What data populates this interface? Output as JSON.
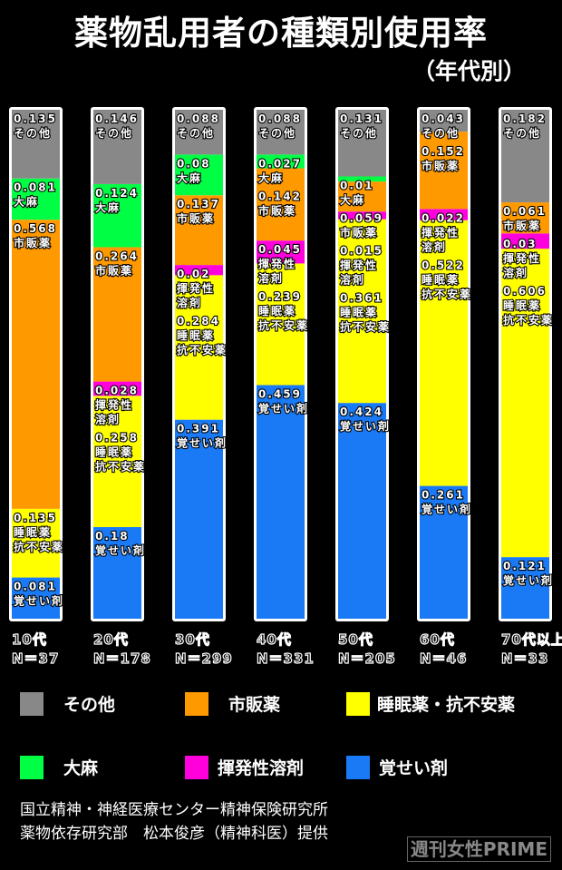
{
  "chart_data": {
    "type": "bar",
    "stacked": true,
    "title": "薬物乱用者の種類別使用率",
    "subtitle": "（年代別）",
    "categories": [
      "10代",
      "20代",
      "30代",
      "40代",
      "50代",
      "60代",
      "70代以上"
    ],
    "sample_sizes": [
      "N＝37",
      "N＝178",
      "N＝299",
      "N＝331",
      "N＝205",
      "N＝46",
      "N＝33"
    ],
    "ylim": [
      0,
      1
    ],
    "grid": false,
    "legend_position": "bottom",
    "series": [
      {
        "name": "覚せい剤",
        "label_lines": [
          "覚せい剤"
        ],
        "color": "#1a7af5",
        "values": [
          0.081,
          0.18,
          0.391,
          0.459,
          0.424,
          0.261,
          0.121
        ]
      },
      {
        "name": "睡眠薬・抗不安薬",
        "label_lines": [
          "睡眠薬",
          "抗不安薬"
        ],
        "color": "#ffff00",
        "values": [
          0.135,
          0.258,
          0.284,
          0.239,
          0.361,
          0.522,
          0.606
        ]
      },
      {
        "name": "揮発性溶剤",
        "label_lines": [
          "揮発性",
          "溶剤"
        ],
        "color": "#ff00dd",
        "values": [
          0,
          0.028,
          0.02,
          0.045,
          0.015,
          0.022,
          0.03
        ]
      },
      {
        "name": "市販薬",
        "label_lines": [
          "市販薬"
        ],
        "color": "#ff9900",
        "values": [
          0.568,
          0.264,
          0.137,
          0.142,
          0.059,
          0.152,
          0.061
        ]
      },
      {
        "name": "大麻",
        "label_lines": [
          "大麻"
        ],
        "color": "#00ff44",
        "values": [
          0.081,
          0.124,
          0.08,
          0.027,
          0.01,
          0,
          0
        ]
      },
      {
        "name": "その他",
        "label_lines": [
          "その他"
        ],
        "color": "#888888",
        "values": [
          0.135,
          0.146,
          0.088,
          0.088,
          0.131,
          0.043,
          0.182
        ]
      }
    ]
  },
  "legend": [
    {
      "label": "その他",
      "color": "#888888"
    },
    {
      "label": "市販薬",
      "color": "#ff9900"
    },
    {
      "label": "睡眠薬・抗不安薬",
      "color": "#ffff00"
    },
    {
      "label": "大麻",
      "color": "#00ff44"
    },
    {
      "label": "揮発性溶剤",
      "color": "#ff00dd"
    },
    {
      "label": "覚せい剤",
      "color": "#1a7af5"
    }
  ],
  "source": {
    "line1": "国立精神・神経医療センター精神保険研究所",
    "line2": "薬物依存研究部　松本俊彦（精神科医）提供"
  },
  "logo": "週刊女性PRIME"
}
